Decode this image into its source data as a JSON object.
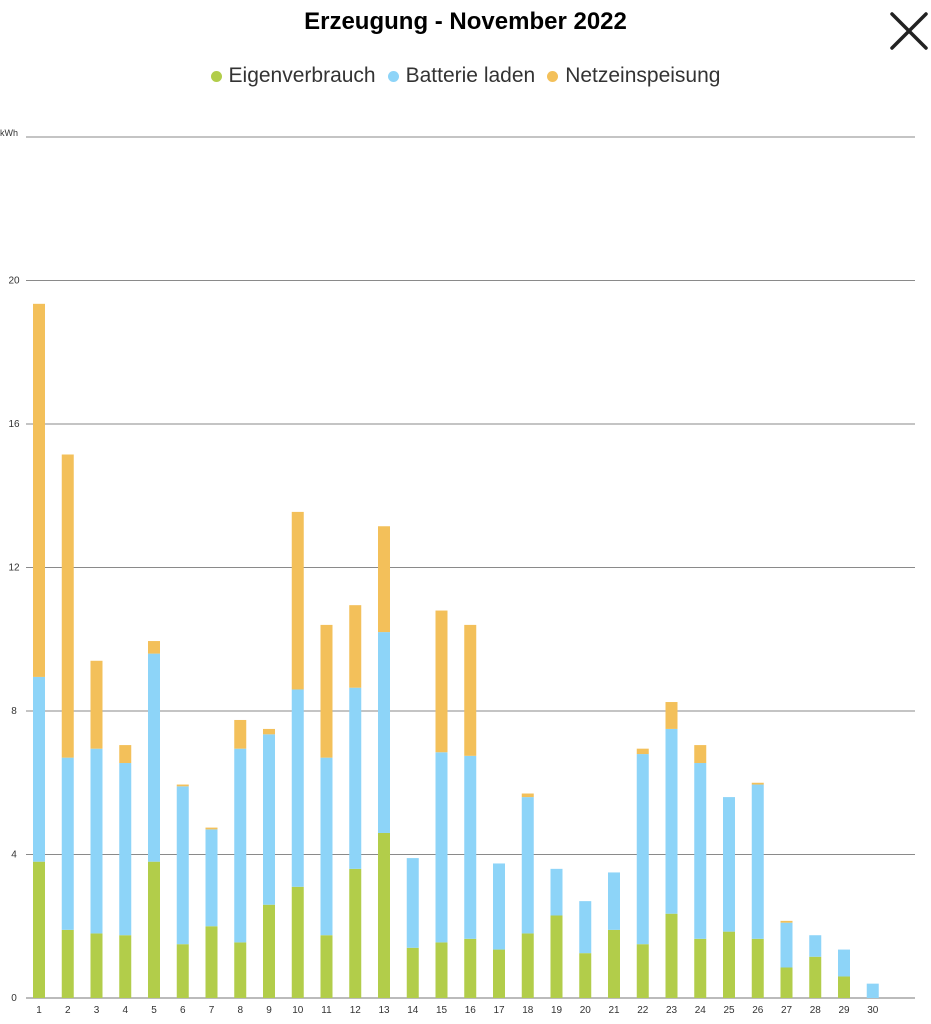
{
  "header": {
    "title": "Erzeugung - November 2022"
  },
  "close_icon": "close-icon",
  "legend": {
    "items": [
      {
        "label": "Eigenverbrauch",
        "color": "#b2cd4a"
      },
      {
        "label": "Batterie laden",
        "color": "#8dd4f8"
      },
      {
        "label": "Netzeinspeisung",
        "color": "#f3c05a"
      }
    ]
  },
  "chart_data": {
    "type": "bar",
    "stacked": true,
    "title": "Erzeugung - November 2022",
    "ylabel": "kWh",
    "ylim": [
      0,
      24
    ],
    "yticks": [
      0,
      4,
      8,
      12,
      16,
      20
    ],
    "grid": true,
    "legend_position": "top-center",
    "categories": [
      "1",
      "2",
      "3",
      "4",
      "5",
      "6",
      "7",
      "8",
      "9",
      "10",
      "11",
      "12",
      "13",
      "14",
      "15",
      "16",
      "17",
      "18",
      "19",
      "20",
      "21",
      "22",
      "23",
      "24",
      "25",
      "26",
      "27",
      "28",
      "29",
      "30"
    ],
    "series": [
      {
        "name": "Eigenverbrauch",
        "color": "#b2cd4a",
        "values": [
          3.8,
          1.9,
          1.8,
          1.75,
          3.8,
          1.5,
          2.0,
          1.55,
          2.6,
          3.1,
          1.75,
          3.6,
          4.6,
          1.4,
          1.55,
          1.65,
          1.35,
          1.8,
          2.3,
          1.25,
          1.9,
          1.5,
          2.35,
          1.65,
          1.85,
          1.65,
          0.85,
          1.15,
          0.6,
          0.0
        ]
      },
      {
        "name": "Batterie laden",
        "color": "#8dd4f8",
        "values": [
          5.15,
          4.8,
          5.15,
          4.8,
          5.8,
          4.4,
          2.7,
          5.4,
          4.75,
          5.5,
          4.95,
          5.05,
          5.6,
          2.5,
          5.3,
          5.1,
          2.4,
          3.8,
          1.3,
          1.45,
          1.6,
          5.3,
          5.15,
          4.9,
          3.75,
          4.3,
          1.25,
          0.6,
          0.75,
          0.4
        ]
      },
      {
        "name": "Netzeinspeisung",
        "color": "#f3c05a",
        "values": [
          10.4,
          8.45,
          2.45,
          0.5,
          0.35,
          0.05,
          0.05,
          0.8,
          0.15,
          4.95,
          3.7,
          2.3,
          2.95,
          0.0,
          3.95,
          3.65,
          0.0,
          0.1,
          0.0,
          0.0,
          0.0,
          0.15,
          0.75,
          0.5,
          0.0,
          0.05,
          0.05,
          0.0,
          0.0,
          0.0
        ]
      }
    ]
  }
}
